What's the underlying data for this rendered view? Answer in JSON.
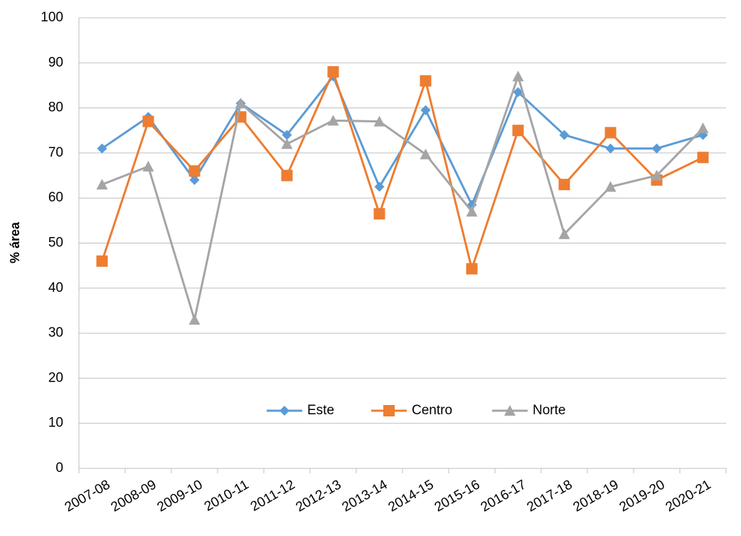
{
  "chart_data": {
    "type": "line",
    "y_label": "% área",
    "categories": [
      "2007-08",
      "2008-09",
      "2009-10",
      "2010-11",
      "2011-12",
      "2012-13",
      "2013-14",
      "2014-15",
      "2015-16",
      "2016-17",
      "2017-18",
      "2018-19",
      "2019-20",
      "2020-21"
    ],
    "series": [
      {
        "name": "Este",
        "color": "#5b9bd5",
        "marker": "diamond",
        "values": [
          71,
          78,
          64,
          81,
          74,
          87,
          62.5,
          79.5,
          58.5,
          83.5,
          74,
          71,
          71,
          74
        ]
      },
      {
        "name": "Centro",
        "color": "#ed7d31",
        "marker": "square",
        "values": [
          46,
          77,
          66,
          78,
          65,
          88,
          56.5,
          86,
          44.3,
          75,
          63,
          74.5,
          64,
          69
        ]
      },
      {
        "name": "Norte",
        "color": "#a5a5a5",
        "marker": "triangle",
        "values": [
          63,
          67,
          33,
          81,
          72,
          77.2,
          77,
          69.7,
          57,
          87,
          52,
          62.5,
          65,
          75.5
        ]
      }
    ],
    "ylim": [
      0,
      100
    ],
    "yticks": [
      0,
      10,
      20,
      30,
      40,
      50,
      60,
      70,
      80,
      90,
      100
    ],
    "grid": true
  }
}
